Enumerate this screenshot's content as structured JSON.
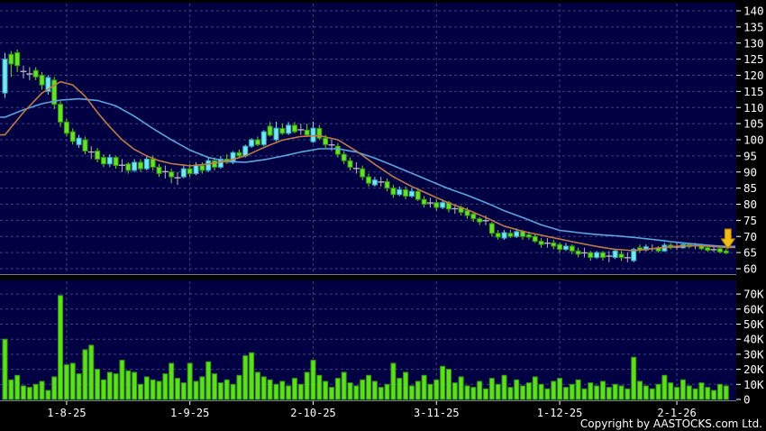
{
  "footer": {
    "copyright": "Copyright by AASTOCKS.com Ltd."
  },
  "colors": {
    "background": "#000000",
    "pane": "#000042",
    "grid": "#9a9ac2",
    "pane_border": "#7a7a7a",
    "label": "#ffffff",
    "up_fill": "#7ce6ee",
    "up_stroke": "#2fb0c0",
    "down_fill": "#6ae128",
    "down_stroke": "#2f9a10",
    "doji": "#b8b8b8",
    "ma_short": "#c07a45",
    "ma_long": "#58a7e0",
    "volume_fill": "#5ede1c",
    "volume_stroke": "#2f9a10",
    "arrow_fill": "#f0bb18",
    "arrow_stroke": "#a87e00"
  },
  "chart_data": {
    "type": "candlestick+volume",
    "price_axis": {
      "min": 60,
      "max": 140,
      "step": 5,
      "tick_labels": [
        "140",
        "135",
        "130",
        "125",
        "120",
        "115",
        "110",
        "105",
        "100",
        "95",
        "90",
        "85",
        "80",
        "75",
        "70",
        "65",
        "60"
      ],
      "tick_values": [
        140,
        135,
        130,
        125,
        120,
        115,
        110,
        105,
        100,
        95,
        90,
        85,
        80,
        75,
        70,
        65,
        60
      ]
    },
    "volume_axis": {
      "unit": "K",
      "tick_labels": [
        "70K",
        "60K",
        "50K",
        "40K",
        "30K",
        "20K",
        "10K",
        "0"
      ],
      "tick_values": [
        70,
        60,
        50,
        40,
        30,
        20,
        10,
        0
      ]
    },
    "x_axis": {
      "ticks": [
        {
          "label": "1-8-25",
          "index": 10
        },
        {
          "label": "1-9-25",
          "index": 30
        },
        {
          "label": "2-10-25",
          "index": 50
        },
        {
          "label": "3-11-25",
          "index": 70
        },
        {
          "label": "1-12-25",
          "index": 90
        },
        {
          "label": "2-1-26",
          "index": 109
        }
      ]
    },
    "legend": {
      "ma_short": "orange moving average",
      "ma_long": "blue moving average"
    },
    "annotations": {
      "down_arrow": {
        "index": 117,
        "from_price": 72.3,
        "to_price": 66.2
      }
    },
    "candles": [
      [
        114.5,
        127,
        113,
        125
      ],
      [
        126.5,
        127.5,
        119.5,
        123.5
      ],
      [
        127,
        128,
        121,
        123
      ],
      [
        121,
        123,
        119,
        121.2
      ],
      [
        120.5,
        122.5,
        118.5,
        120.4
      ],
      [
        121.5,
        122.5,
        118.5,
        119.5
      ],
      [
        120,
        121,
        115.5,
        117
      ],
      [
        115,
        120,
        114,
        119.3
      ],
      [
        118.5,
        119.5,
        109.5,
        111
      ],
      [
        111,
        112,
        104,
        105.5
      ],
      [
        105.5,
        106.5,
        101,
        102
      ],
      [
        102.5,
        103.5,
        98.5,
        99.5
      ],
      [
        98.5,
        101.5,
        97.5,
        100.5
      ],
      [
        100,
        101,
        95.5,
        96.5
      ],
      [
        96.3,
        98,
        94,
        96.2
      ],
      [
        96.5,
        97.5,
        93,
        94
      ],
      [
        94.5,
        95.5,
        91.5,
        92.5
      ],
      [
        92.5,
        95.5,
        91.5,
        94.5
      ],
      [
        94.5,
        95,
        91,
        92
      ],
      [
        92,
        94,
        90,
        92.1
      ],
      [
        92.5,
        93,
        89.5,
        90.5
      ],
      [
        90.5,
        94,
        90,
        93
      ],
      [
        93,
        94,
        90,
        91
      ],
      [
        91,
        95,
        90.5,
        94
      ],
      [
        94,
        95,
        90.5,
        91.5
      ],
      [
        91.5,
        92.5,
        88.5,
        89.5
      ],
      [
        90,
        92,
        88,
        90.1
      ],
      [
        90,
        91,
        86.5,
        88.5
      ],
      [
        88.3,
        90,
        86,
        88.2
      ],
      [
        88.5,
        92,
        88,
        91
      ],
      [
        91,
        92.5,
        88.5,
        89.5
      ],
      [
        89.5,
        93,
        89,
        92
      ],
      [
        92,
        93,
        89.5,
        90.5
      ],
      [
        90.5,
        94.5,
        90,
        93.5
      ],
      [
        93.5,
        94.5,
        90.5,
        91.5
      ],
      [
        91.5,
        95,
        91,
        94
      ],
      [
        94,
        95.5,
        92.5,
        93
      ],
      [
        93,
        96.5,
        92.5,
        96
      ],
      [
        96,
        97,
        94.5,
        95
      ],
      [
        95,
        98.5,
        94.5,
        98
      ],
      [
        98,
        100.5,
        97.5,
        100
      ],
      [
        100,
        101,
        98,
        98.5
      ],
      [
        98.5,
        103,
        98,
        102.5
      ],
      [
        104.2,
        105.5,
        101,
        101.4
      ],
      [
        100,
        105.6,
        99.5,
        103.6
      ],
      [
        103.5,
        105,
        101.5,
        102
      ],
      [
        102,
        105.5,
        101.5,
        104.5
      ],
      [
        104.5,
        105.5,
        102,
        102.5
      ],
      [
        103,
        105,
        101.5,
        103.1
      ],
      [
        103,
        105,
        101,
        101.5
      ],
      [
        99.4,
        105.6,
        99,
        103.6
      ],
      [
        103.5,
        104.5,
        100,
        100.5
      ],
      [
        100.5,
        101.5,
        97.5,
        98.5
      ],
      [
        98.5,
        100,
        96.5,
        98.4
      ],
      [
        98,
        99,
        94.5,
        95.5
      ],
      [
        95.5,
        96.5,
        92.5,
        93.5
      ],
      [
        93.5,
        94.5,
        90.5,
        91.5
      ],
      [
        91,
        93,
        89.5,
        91.1
      ],
      [
        91,
        92,
        87.5,
        88.5
      ],
      [
        88.5,
        89.5,
        85.5,
        86.5
      ],
      [
        86,
        88.5,
        85.5,
        87.5
      ],
      [
        87,
        88.5,
        85.5,
        86.9
      ],
      [
        87,
        88,
        84,
        85
      ],
      [
        85,
        86,
        82,
        83
      ],
      [
        83,
        85.5,
        82.5,
        84.5
      ],
      [
        84.5,
        85.5,
        81.5,
        82.5
      ],
      [
        82.5,
        85,
        82,
        84
      ],
      [
        84,
        84.5,
        81,
        81.5
      ],
      [
        81.5,
        82.5,
        79,
        80
      ],
      [
        80.5,
        82,
        79,
        80.4
      ],
      [
        80.5,
        81.5,
        78,
        79
      ],
      [
        79,
        81.5,
        78.5,
        80.5
      ],
      [
        80.5,
        81,
        77.5,
        78.5
      ],
      [
        78.5,
        80,
        77,
        78.6
      ],
      [
        79,
        79.5,
        76.5,
        77.5
      ],
      [
        78,
        79,
        75.5,
        76.5
      ],
      [
        77,
        77.5,
        74.5,
        75.5
      ],
      [
        75.5,
        76,
        73.5,
        74.5
      ],
      [
        75,
        76.5,
        73.5,
        74.9
      ],
      [
        74,
        74.5,
        70,
        71
      ],
      [
        71,
        72,
        69,
        69.8
      ],
      [
        69.5,
        72,
        69,
        71.2
      ],
      [
        71,
        72,
        69.5,
        70
      ],
      [
        70,
        72.5,
        69.5,
        71.5
      ],
      [
        71.5,
        72,
        69,
        70
      ],
      [
        70.5,
        71.5,
        69,
        69.8
      ],
      [
        70,
        71,
        68,
        68.5
      ],
      [
        68.5,
        69.5,
        66.5,
        67.5
      ],
      [
        68,
        69.5,
        66.5,
        67.9
      ],
      [
        68,
        69,
        66,
        67
      ],
      [
        67.5,
        68,
        65,
        66
      ],
      [
        66,
        68,
        65.5,
        67
      ],
      [
        67,
        67.5,
        64.5,
        65.5
      ],
      [
        65.5,
        66.5,
        63.5,
        64.5
      ],
      [
        65,
        66.5,
        63.5,
        64.9
      ],
      [
        65,
        65.5,
        62.5,
        63.5
      ],
      [
        63.5,
        65.5,
        63,
        65
      ],
      [
        65,
        65.5,
        62.5,
        63.5
      ],
      [
        64,
        65.5,
        62,
        63.9
      ],
      [
        63.5,
        66,
        63,
        65.5
      ],
      [
        64.5,
        65.5,
        62.5,
        63.5
      ],
      [
        63.5,
        65,
        62,
        63.4
      ],
      [
        62.5,
        66.5,
        62,
        66
      ],
      [
        66.5,
        67.5,
        65,
        65.8
      ],
      [
        65.8,
        67.5,
        65.3,
        66.8
      ],
      [
        66.3,
        67.5,
        65.3,
        66.2
      ],
      [
        66.5,
        67,
        65,
        65.5
      ],
      [
        65.5,
        68,
        65.2,
        67.3
      ],
      [
        67.3,
        68,
        66,
        66.5
      ],
      [
        66.8,
        68,
        65.8,
        66.7
      ],
      [
        66.5,
        68.2,
        66.2,
        67.5
      ],
      [
        67.5,
        68,
        66.3,
        66.8
      ],
      [
        67,
        68,
        66,
        67.1
      ],
      [
        67.2,
        67.8,
        65.8,
        66.2
      ],
      [
        66.5,
        67,
        65.2,
        65.7
      ],
      [
        66,
        67,
        65.2,
        65.9
      ],
      [
        66.2,
        66.8,
        64.8,
        65.2
      ],
      [
        65.5,
        66.2,
        64.5,
        64.9
      ]
    ],
    "volumes_k": [
      40,
      13,
      16,
      9,
      8,
      10,
      12,
      6,
      15,
      69,
      23,
      24,
      17,
      33,
      36,
      20,
      13,
      18,
      17,
      26,
      19,
      18,
      10,
      15,
      13,
      12,
      17,
      24,
      14,
      11,
      24,
      12,
      15,
      25,
      17,
      11,
      13,
      10,
      16,
      29,
      31,
      18,
      15,
      13,
      10,
      12,
      9,
      14,
      10,
      18,
      26,
      16,
      12,
      8,
      14,
      18,
      11,
      9,
      13,
      16,
      12,
      8,
      10,
      24,
      14,
      18,
      9,
      12,
      16,
      10,
      13,
      22,
      20,
      11,
      15,
      9,
      8,
      12,
      7,
      14,
      10,
      16,
      8,
      13,
      9,
      11,
      15,
      10,
      7,
      12,
      14,
      8,
      10,
      13,
      7,
      11,
      9,
      12,
      8,
      10,
      9,
      7,
      28,
      12,
      9,
      7,
      10,
      16,
      11,
      8,
      13,
      9,
      7,
      11,
      8,
      6,
      10,
      9
    ],
    "ma_short_anchors": [
      [
        0,
        101.5
      ],
      [
        3,
        108.5
      ],
      [
        6,
        114.5
      ],
      [
        9,
        118
      ],
      [
        11,
        117
      ],
      [
        13,
        113.5
      ],
      [
        15,
        108.5
      ],
      [
        17,
        104
      ],
      [
        19,
        100
      ],
      [
        21,
        97
      ],
      [
        23,
        95
      ],
      [
        25,
        93.5
      ],
      [
        27,
        92.6
      ],
      [
        30,
        91.9
      ],
      [
        33,
        92.5
      ],
      [
        36,
        93.4
      ],
      [
        39,
        95
      ],
      [
        42,
        97.6
      ],
      [
        45,
        99.9
      ],
      [
        48,
        101
      ],
      [
        51,
        101.3
      ],
      [
        54,
        100
      ],
      [
        57,
        96.5
      ],
      [
        60,
        92.4
      ],
      [
        63,
        88.5
      ],
      [
        66,
        85.5
      ],
      [
        69,
        82.9
      ],
      [
        72,
        80.4
      ],
      [
        75,
        78.3
      ],
      [
        78,
        75.9
      ],
      [
        81,
        73.2
      ],
      [
        84,
        71.6
      ],
      [
        87,
        70.4
      ],
      [
        90,
        69.2
      ],
      [
        93,
        68
      ],
      [
        96,
        66.9
      ],
      [
        99,
        66
      ],
      [
        102,
        65.6
      ],
      [
        105,
        66.2
      ],
      [
        108,
        66.8
      ],
      [
        111,
        67.2
      ],
      [
        114,
        67
      ],
      [
        117,
        66.6
      ]
    ],
    "ma_long_anchors": [
      [
        0,
        107
      ],
      [
        3,
        109.3
      ],
      [
        6,
        111.2
      ],
      [
        9,
        112.3
      ],
      [
        12,
        112.7
      ],
      [
        15,
        112.2
      ],
      [
        18,
        110.5
      ],
      [
        21,
        107.3
      ],
      [
        24,
        103.5
      ],
      [
        27,
        100
      ],
      [
        30,
        96.8
      ],
      [
        33,
        94.5
      ],
      [
        36,
        93.3
      ],
      [
        39,
        93
      ],
      [
        42,
        93.8
      ],
      [
        45,
        94.9
      ],
      [
        48,
        96.2
      ],
      [
        51,
        97.2
      ],
      [
        54,
        97.2
      ],
      [
        57,
        96.2
      ],
      [
        60,
        94.3
      ],
      [
        63,
        92
      ],
      [
        66,
        89.6
      ],
      [
        69,
        87.2
      ],
      [
        72,
        84.8
      ],
      [
        75,
        82.8
      ],
      [
        78,
        80.5
      ],
      [
        81,
        78
      ],
      [
        84,
        75.9
      ],
      [
        87,
        73.6
      ],
      [
        90,
        71.9
      ],
      [
        93,
        71.2
      ],
      [
        96,
        70.6
      ],
      [
        99,
        70.2
      ],
      [
        102,
        69.7
      ],
      [
        105,
        69.1
      ],
      [
        108,
        68.4
      ],
      [
        111,
        67.8
      ],
      [
        114,
        67.3
      ],
      [
        117,
        66.9
      ]
    ]
  }
}
